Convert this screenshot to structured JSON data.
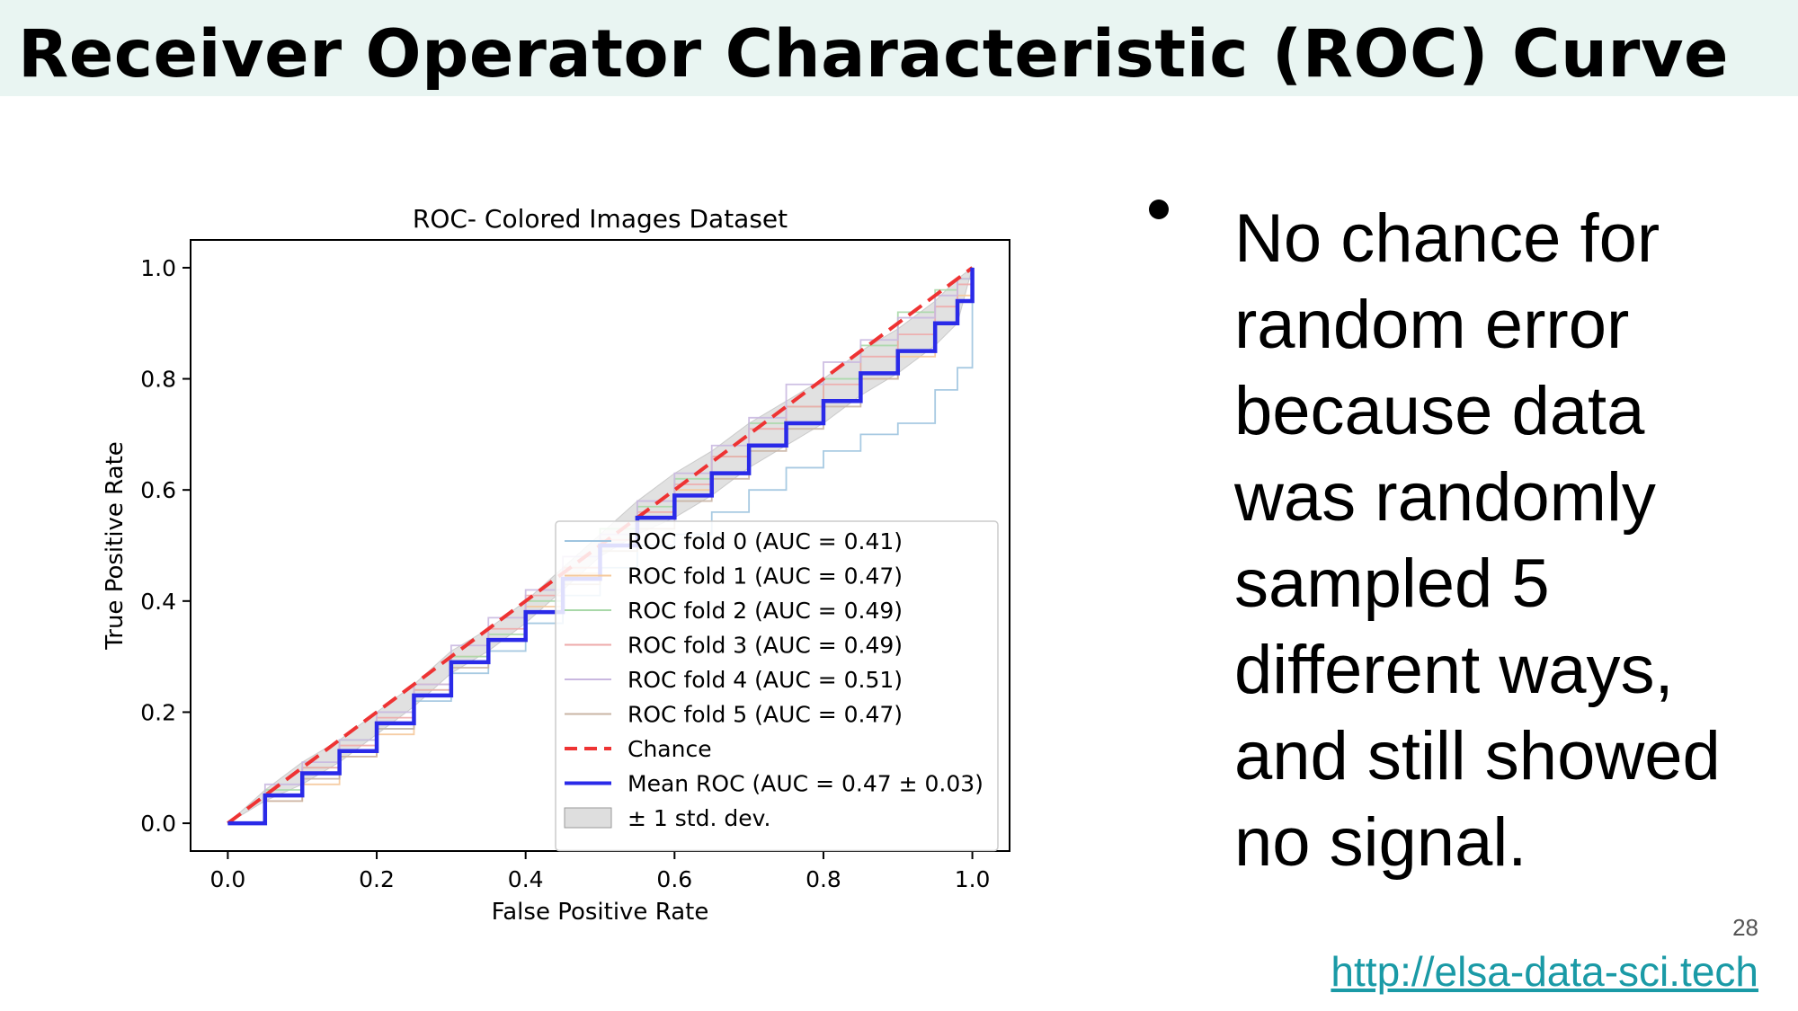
{
  "slide": {
    "title": "Receiver Operator Characteristic (ROC) Curve",
    "bullet": "No chance for\nrandom error\nbecause data\nwas randomly\nsampled 5\ndifferent ways,\nand still showed\nno signal.",
    "page_number": "28",
    "link": "http://elsa-data-sci.tech"
  },
  "colors": {
    "title_band": "#e9f5f2",
    "chance": "#ee3333",
    "mean": "#2a2ae8",
    "std_band": "#bdbdbd",
    "link": "#1a9aa6"
  },
  "chart_data": {
    "type": "line",
    "title": "ROC- Colored Images Dataset",
    "xlabel": "False Positive Rate",
    "ylabel": "True Positive Rate",
    "xlim": [
      -0.05,
      1.05
    ],
    "ylim": [
      -0.05,
      1.05
    ],
    "xticks": [
      "0.0",
      "0.2",
      "0.4",
      "0.6",
      "0.8",
      "1.0"
    ],
    "yticks": [
      "0.0",
      "0.2",
      "0.4",
      "0.6",
      "0.8",
      "1.0"
    ],
    "legend_position": "lower-right",
    "x": [
      0.0,
      0.05,
      0.1,
      0.15,
      0.2,
      0.25,
      0.3,
      0.35,
      0.4,
      0.45,
      0.5,
      0.55,
      0.6,
      0.65,
      0.7,
      0.75,
      0.8,
      0.85,
      0.9,
      0.95,
      0.98,
      1.0
    ],
    "series": [
      {
        "name": "ROC fold 0 (AUC = 0.41)",
        "color": "#9ec4df",
        "values": [
          0.0,
          0.05,
          0.09,
          0.13,
          0.17,
          0.22,
          0.27,
          0.31,
          0.36,
          0.41,
          0.46,
          0.5,
          0.52,
          0.56,
          0.6,
          0.64,
          0.67,
          0.7,
          0.72,
          0.78,
          0.82,
          1.0
        ]
      },
      {
        "name": "ROC fold 1 (AUC = 0.47)",
        "color": "#f5c89a",
        "values": [
          0.0,
          0.04,
          0.07,
          0.12,
          0.16,
          0.25,
          0.3,
          0.33,
          0.39,
          0.45,
          0.5,
          0.55,
          0.6,
          0.63,
          0.68,
          0.72,
          0.76,
          0.8,
          0.84,
          0.9,
          0.95,
          1.0
        ]
      },
      {
        "name": "ROC fold 2 (AUC = 0.49)",
        "color": "#a8d8a8",
        "values": [
          0.0,
          0.06,
          0.1,
          0.15,
          0.18,
          0.24,
          0.3,
          0.34,
          0.4,
          0.46,
          0.53,
          0.57,
          0.62,
          0.66,
          0.72,
          0.75,
          0.8,
          0.86,
          0.92,
          0.96,
          0.98,
          1.0
        ]
      },
      {
        "name": "ROC fold 3 (AUC = 0.49)",
        "color": "#eeaaaa",
        "values": [
          0.0,
          0.05,
          0.1,
          0.14,
          0.19,
          0.24,
          0.29,
          0.35,
          0.41,
          0.46,
          0.51,
          0.56,
          0.61,
          0.66,
          0.71,
          0.75,
          0.79,
          0.84,
          0.88,
          0.93,
          0.97,
          1.0
        ]
      },
      {
        "name": "ROC fold 4 (AUC = 0.51)",
        "color": "#c9b8e0",
        "values": [
          0.0,
          0.07,
          0.11,
          0.15,
          0.2,
          0.25,
          0.32,
          0.37,
          0.42,
          0.48,
          0.52,
          0.58,
          0.63,
          0.68,
          0.73,
          0.79,
          0.83,
          0.87,
          0.91,
          0.95,
          0.98,
          1.0
        ]
      },
      {
        "name": "ROC fold 5 (AUC = 0.47)",
        "color": "#c9b4a4",
        "values": [
          0.0,
          0.04,
          0.08,
          0.12,
          0.17,
          0.23,
          0.28,
          0.33,
          0.38,
          0.43,
          0.49,
          0.53,
          0.58,
          0.62,
          0.67,
          0.71,
          0.75,
          0.8,
          0.85,
          0.9,
          0.94,
          1.0
        ]
      },
      {
        "name": "Chance",
        "color": "#ee3333",
        "dashed": true,
        "values": [
          0.0,
          0.05,
          0.1,
          0.15,
          0.2,
          0.25,
          0.3,
          0.35,
          0.4,
          0.45,
          0.5,
          0.55,
          0.6,
          0.65,
          0.7,
          0.75,
          0.8,
          0.85,
          0.9,
          0.95,
          0.98,
          1.0
        ]
      },
      {
        "name": "Mean ROC (AUC = 0.47 ± 0.03)",
        "color": "#2a2ae8",
        "values": [
          0.0,
          0.05,
          0.09,
          0.13,
          0.18,
          0.23,
          0.29,
          0.33,
          0.38,
          0.44,
          0.5,
          0.55,
          0.59,
          0.63,
          0.68,
          0.72,
          0.76,
          0.81,
          0.85,
          0.9,
          0.94,
          1.0
        ]
      }
    ],
    "band": {
      "name": "± 1 std. dev.",
      "color": "#bdbdbd",
      "lower": [
        0.0,
        0.04,
        0.07,
        0.11,
        0.16,
        0.21,
        0.27,
        0.31,
        0.36,
        0.42,
        0.48,
        0.52,
        0.55,
        0.59,
        0.64,
        0.68,
        0.72,
        0.77,
        0.81,
        0.86,
        0.9,
        1.0
      ],
      "upper": [
        0.0,
        0.06,
        0.11,
        0.15,
        0.2,
        0.25,
        0.31,
        0.35,
        0.4,
        0.46,
        0.52,
        0.58,
        0.63,
        0.67,
        0.72,
        0.76,
        0.8,
        0.85,
        0.89,
        0.94,
        0.98,
        1.0
      ]
    }
  }
}
